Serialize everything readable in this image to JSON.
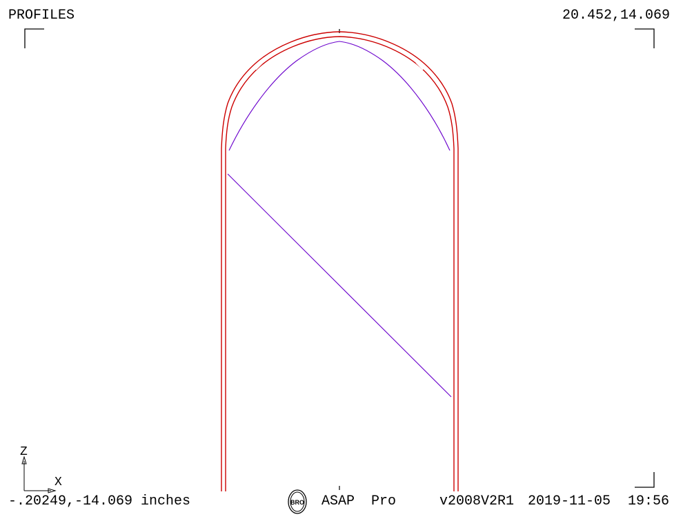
{
  "plot": {
    "title": "PROFILES",
    "max_coords": "20.452,14.069",
    "min_coords": "-.20249,-14.069 inches",
    "colors": {
      "background": "#ffffff",
      "frame": "#000000",
      "outer_profile": "#cc0000",
      "inner_profile": "#6a00cc"
    }
  },
  "axes": {
    "vertical_label": "Z",
    "horizontal_label": "X"
  },
  "footer": {
    "logo_icon": "bro-logo-icon",
    "program": "ASAP  Pro",
    "version": "v2008V2R1",
    "date": "2019-11-05",
    "time": "19:56"
  }
}
